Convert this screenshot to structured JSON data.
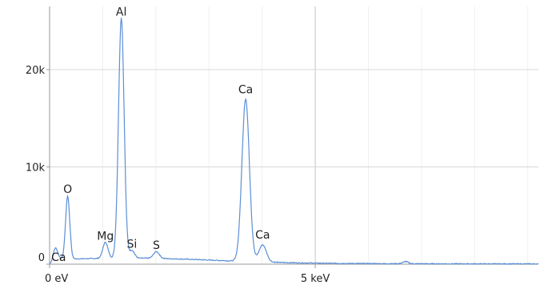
{
  "chart_data": {
    "type": "line",
    "title": "",
    "xlabel": "",
    "ylabel": "",
    "xlim": [
      0,
      9.2
    ],
    "ylim": [
      0,
      26500
    ],
    "grid": true,
    "x_ticks": [
      {
        "value": 0,
        "label": "0 eV"
      },
      {
        "value": 5,
        "label": "5 keV"
      }
    ],
    "y_ticks": [
      {
        "value": 0,
        "label": "0"
      },
      {
        "value": 10000,
        "label": "10k"
      },
      {
        "value": 20000,
        "label": "20k"
      }
    ],
    "x_gridlines": [
      1,
      2,
      3,
      4,
      5,
      6,
      7,
      8,
      9
    ],
    "x_major_gridline": 5,
    "y_gridlines": [
      10000,
      20000
    ],
    "baseline": 350,
    "peaks": [
      {
        "label": "Ca",
        "energy": 0.11,
        "height": 1400,
        "width": 0.02
      },
      {
        "label": "O",
        "energy": 0.34,
        "height": 6450,
        "width": 0.018
      },
      {
        "label": "Mg",
        "energy": 1.05,
        "height": 1650,
        "width": 0.022
      },
      {
        "label": "Al",
        "energy": 1.35,
        "height": 24700,
        "width": 0.024
      },
      {
        "label": "Si",
        "energy": 1.55,
        "height": 800,
        "width": 0.022
      },
      {
        "label": "S",
        "energy": 2.01,
        "height": 700,
        "width": 0.025
      },
      {
        "label": "Ca",
        "energy": 3.69,
        "height": 16700,
        "width": 0.032
      },
      {
        "label": "Ca",
        "energy": 4.01,
        "height": 1750,
        "width": 0.032
      }
    ],
    "line_color": "#5b8fd6",
    "grid_color": "#d0d0d0"
  }
}
